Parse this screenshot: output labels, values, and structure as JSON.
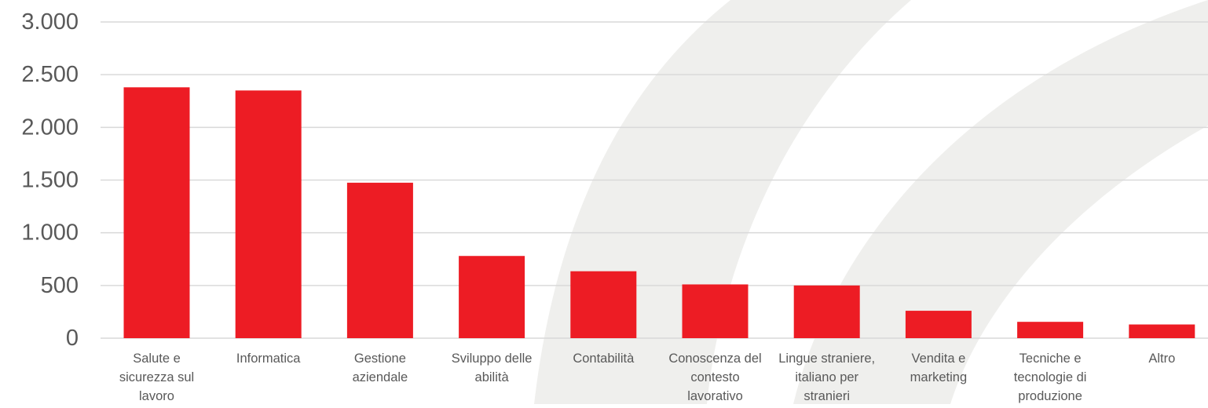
{
  "chart_data": {
    "type": "bar",
    "categories": [
      "Salute e sicurezza sul lavoro",
      "Informatica",
      "Gestione aziendale",
      "Sviluppo delle abilità",
      "Contabilità",
      "Conoscenza del contesto lavorativo",
      "Lingue straniere, italiano per stranieri",
      "Vendita e marketing",
      "Tecniche e tecnologie di produzione",
      "Altro"
    ],
    "category_lines": [
      [
        "Salute e",
        "sicurezza sul",
        "lavoro"
      ],
      [
        "Informatica"
      ],
      [
        "Gestione",
        "aziendale"
      ],
      [
        "Sviluppo delle",
        "abilità"
      ],
      [
        "Contabilità"
      ],
      [
        "Conoscenza del",
        "contesto",
        "lavorativo"
      ],
      [
        "Lingue straniere,",
        "italiano per",
        "stranieri"
      ],
      [
        "Vendita e",
        "marketing"
      ],
      [
        "Tecniche e",
        "tecnologie di",
        "produzione"
      ],
      [
        "Altro"
      ]
    ],
    "values": [
      2380,
      2350,
      1475,
      780,
      635,
      510,
      500,
      260,
      155,
      130
    ],
    "y_ticks": [
      {
        "value": 0,
        "label": "0"
      },
      {
        "value": 500,
        "label": "500"
      },
      {
        "value": 1000,
        "label": "1.000"
      },
      {
        "value": 1500,
        "label": "1.500"
      },
      {
        "value": 2000,
        "label": "2.000"
      },
      {
        "value": 2500,
        "label": "2.500"
      },
      {
        "value": 3000,
        "label": "3.000"
      }
    ],
    "ylim": [
      0,
      3000
    ],
    "title": "",
    "xlabel": "",
    "ylabel": "",
    "grid": true,
    "legend": "none",
    "colors": {
      "bar": "#ED1C24",
      "grid": "#D9D9D9",
      "axis_text": "#595959",
      "background_arc": "#EFEFED"
    }
  }
}
